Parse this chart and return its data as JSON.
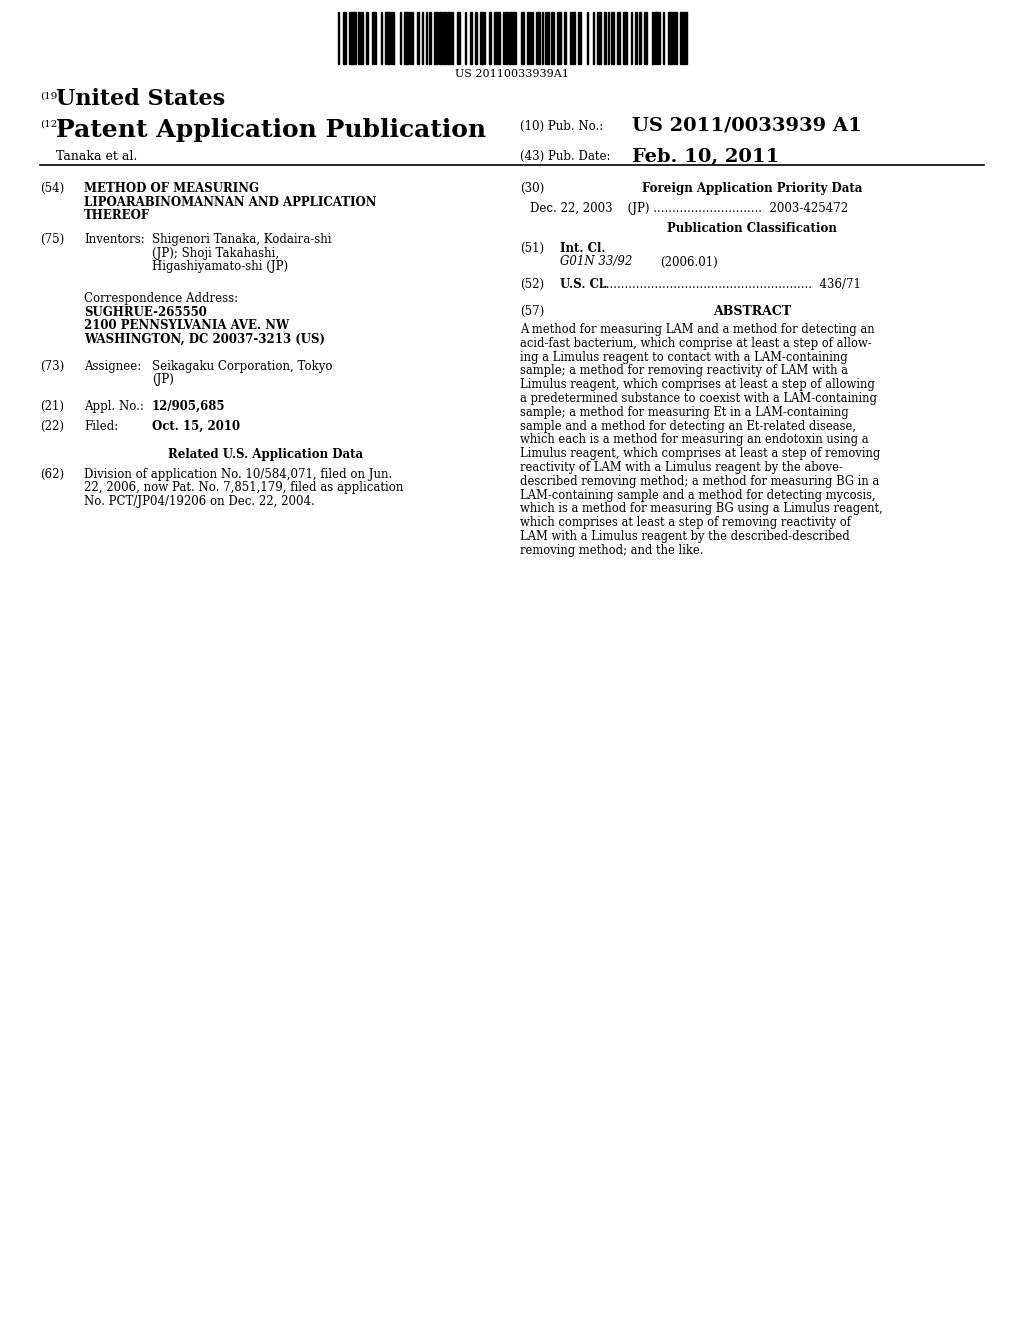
{
  "background_color": "#ffffff",
  "barcode_text": "US 20110033939A1",
  "title_19": "(19)",
  "title_us": "United States",
  "title_12": "(12)",
  "title_patent": "Patent Application Publication",
  "title_10": "(10) Pub. No.:",
  "pub_no": "US 2011/0033939 A1",
  "title_43": "(43) Pub. Date:",
  "pub_date": "Feb. 10, 2011",
  "inventor_line": "Tanaka et al.",
  "field_54_label": "(54)",
  "field_54_line1": "METHOD OF MEASURING",
  "field_54_line2": "LIPOARABINOMANNAN AND APPLICATION",
  "field_54_line3": "THEREOF",
  "field_75_label": "(75)",
  "field_75_name": "Inventors:",
  "field_75_line1": "Shigenori Tanaka, Kodaira-shi",
  "field_75_line2": "(JP); Shoji Takahashi,",
  "field_75_line3": "Higashiyamato-shi (JP)",
  "corr_label": "Correspondence Address:",
  "corr_line1": "SUGHRUE-265550",
  "corr_line2": "2100 PENNSYLVANIA AVE. NW",
  "corr_line3": "WASHINGTON, DC 20037-3213 (US)",
  "field_73_label": "(73)",
  "field_73_name": "Assignee:",
  "field_73_line1": "Seikagaku Corporation, Tokyo",
  "field_73_line2": "(JP)",
  "field_21_label": "(21)",
  "field_21_name": "Appl. No.:",
  "field_21_value": "12/905,685",
  "field_22_label": "(22)",
  "field_22_name": "Filed:",
  "field_22_value": "Oct. 15, 2010",
  "related_header": "Related U.S. Application Data",
  "field_62_label": "(62)",
  "field_62_line1": "Division of application No. 10/584,071, filed on Jun.",
  "field_62_line2": "22, 2006, now Pat. No. 7,851,179, filed as application",
  "field_62_line3": "No. PCT/JP04/19206 on Dec. 22, 2004.",
  "field_30_label": "(30)",
  "field_30_header": "Foreign Application Priority Data",
  "field_30_value": "Dec. 22, 2003    (JP) .............................  2003-425472",
  "pub_class_header": "Publication Classification",
  "field_51_label": "(51)",
  "field_51_name": "Int. Cl.",
  "field_51_class": "G01N 33/92",
  "field_51_year": "(2006.01)",
  "field_52_label": "(52)",
  "field_52_name": "U.S. Cl.",
  "field_52_dots": "........................................................",
  "field_52_value": "436/71",
  "field_57_label": "(57)",
  "field_57_header": "ABSTRACT",
  "abstract_lines": [
    "A method for measuring LAM and a method for detecting an",
    "acid-fast bacterium, which comprise at least a step of allow-",
    "ing a ⁠Limulus⁠ reagent to contact with a LAM-containing",
    "sample; a method for removing reactivity of LAM with a",
    "⁠Limulus⁠ reagent, which comprises at least a step of allowing",
    "a predetermined substance to coexist with a LAM-containing",
    "sample; a method for measuring Et in a LAM-containing",
    "sample and a method for detecting an Et-related disease,",
    "which each is a method for measuring an endotoxin using a",
    "⁠Limulus⁠ reagent, which comprises at least a step of removing",
    "reactivity of LAM with a ⁠Limulus⁠ reagent by the above-",
    "described removing method; a method for measuring BG in a",
    "LAM-containing sample and a method for detecting mycosis,",
    "which is a method for measuring BG using a ⁠Limulus⁠ reagent,",
    "which comprises at least a step of removing reactivity of",
    "LAM with a ⁠Limulus⁠ reagent by the described-described",
    "removing method; and the like."
  ],
  "abstract_lines_plain": [
    "A method for measuring LAM and a method for detecting an",
    "acid-fast bacterium, which comprise at least a step of allow-",
    "ing a Limulus reagent to contact with a LAM-containing",
    "sample; a method for removing reactivity of LAM with a",
    "Limulus reagent, which comprises at least a step of allowing",
    "a predetermined substance to coexist with a LAM-containing",
    "sample; a method for measuring Et in a LAM-containing",
    "sample and a method for detecting an Et-related disease,",
    "which each is a method for measuring an endotoxin using a",
    "Limulus reagent, which comprises at least a step of removing",
    "reactivity of LAM with a Limulus reagent by the above-",
    "described removing method; a method for measuring BG in a",
    "LAM-containing sample and a method for detecting mycosis,",
    "which is a method for measuring BG using a Limulus reagent,",
    "which comprises at least a step of removing reactivity of",
    "LAM with a Limulus reagent by the described-described",
    "removing method; and the like."
  ]
}
